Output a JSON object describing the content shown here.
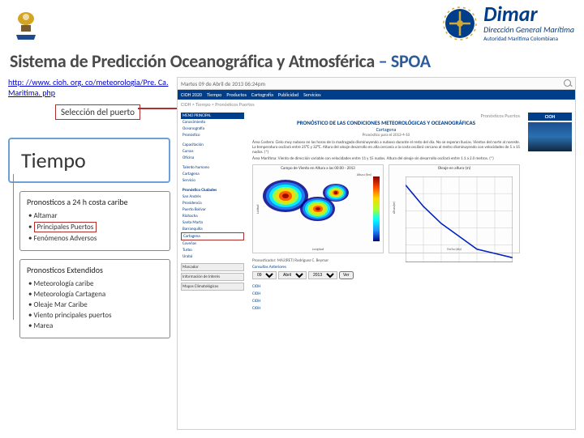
{
  "header": {
    "dimar_name": "Dimar",
    "dimar_sub": "Dirección General Marítima",
    "dimar_sub2": "Autoridad Marítima Colombiana"
  },
  "title": {
    "text": "Sistema de Predicción Oceanográfica y Atmosférica",
    "suffix": "– SPOA"
  },
  "url": "http: //www. cioh. org. co/meteorologia/Pre. Ca. Maritima. php",
  "selector_label": "Selección del puerto",
  "tiempo": {
    "title": "Tiempo"
  },
  "pron24": {
    "title": "Pronosticos a 24 h costa caribe",
    "items": [
      "Altamar",
      "Principales Puertos",
      "Fenómenos Adversos"
    ],
    "highlight_idx": 1
  },
  "pronExt": {
    "title": "Pronosticos Extendidos",
    "items": [
      "Meteorología caribe",
      "Meteorología Cartagena",
      "Oleaje Mar Caribe",
      "Viento principales puertos",
      "Marea"
    ]
  },
  "browser": {
    "date_header": "Martes 09 de Abril de 2013 06:24pm"
  },
  "webnav": {
    "items": [
      "CIOH 2020",
      "Tiempo",
      "Productos",
      "Cartografía",
      "Publicidad",
      "Servicios"
    ],
    "crumb": "CIOH > Tiempo > Pronósticos Puertos"
  },
  "sidebar": {
    "menu_title": "MENÚ PRINCIPAL",
    "sections": [
      {
        "items": [
          "Conocimiento",
          "Oceanografía",
          "Pronóstico"
        ]
      },
      {
        "items": [
          "Capacitación",
          "Cursos",
          "Oficina"
        ]
      },
      {
        "items": [
          "Talento humano",
          "Cartagena",
          "Servicio"
        ]
      }
    ],
    "pron_label": "Pronóstico Ciudades",
    "cities": [
      "San Andrés",
      "Providencia",
      "Puerto Bolívar",
      "Riohacha",
      "Santa Marta",
      "Barranquilla",
      "Cartagena",
      "Coveñas",
      "Turbo",
      "Urabá"
    ],
    "highlight_city_idx": 6,
    "mark_btn": "Marcador",
    "info_btn": "Información de Interés",
    "maps_btn": "Mapas Climatológicos"
  },
  "forecast": {
    "title": "PRONÓSTICO DE LAS CONDICIONES METEOROLÓGICAS Y OCEANOGRÁFICAS",
    "city": "Cartagena",
    "date": "Pronóstico para el 2013-4-10",
    "p1": "Área Costera: Cielo muy nuboso en las horas de la madrugada disminuyendo a nuboso durante el resto del día. No se esperan lluvias. Vientos del norte al noreste. La temperatura oscilará entre 25°C y 32°C. Altura del oleaje desarrollo en alta cercanía a la costa oscilará cercano al metro disminuyendo con velocidades de 5 a 15 nudos. (*)",
    "p2": "Área Marítima: Viento de dirección variable con velocidades entre 11 y 15 nudos. Altura del oleaje sin desarrollo oscilará entre 1.1 a 2.0 metros. (*)",
    "forecaster": "Pronosticador: MA2(RET) Rodriguez C. Beymar",
    "consultas": "Consultas Anteriores",
    "day": "09",
    "month": "Abril",
    "year": "2013",
    "go": "Ver"
  },
  "chart1": {
    "type": "contour",
    "title": "Campo de Viento en Altura a las 00:00 - 2013",
    "ylabel": "Latitud",
    "xlabel": "Longitud",
    "xlim": [
      -85,
      -55
    ],
    "ylim": [
      5,
      20
    ],
    "cbar_title": "Altura (km)",
    "cbar_range": [
      0,
      4.0
    ],
    "colors": [
      "#8b0000",
      "#ff4500",
      "#ffd700",
      "#adff2f",
      "#00ffff",
      "#1e90ff",
      "#00008b"
    ]
  },
  "chart2": {
    "type": "line",
    "title": "Oleaje en altura (m)",
    "ylabel": "Altura(m)",
    "xlabel": "Fecha (día)",
    "xlim": [
      9.0,
      12.0
    ],
    "ylim": [
      0.8,
      1.8
    ],
    "xticks": [
      9.0,
      9.5,
      10.0,
      10.5,
      11.0,
      11.5,
      12.0
    ],
    "yticks": [
      0.8,
      1.0,
      1.2,
      1.4,
      1.6,
      1.8
    ],
    "series": {
      "x": [
        9.0,
        9.5,
        10.0,
        10.5,
        11.0,
        11.5,
        12.0
      ],
      "y": [
        1.7,
        1.45,
        1.25,
        1.1,
        0.95,
        0.9,
        0.85
      ],
      "color": "#0020c0"
    },
    "grid_color": "#cccccc"
  },
  "right_panel": {
    "cioh": "CIOH",
    "links": [
      "CIOH",
      "CIOH",
      "CIOH",
      "CIOH"
    ]
  }
}
